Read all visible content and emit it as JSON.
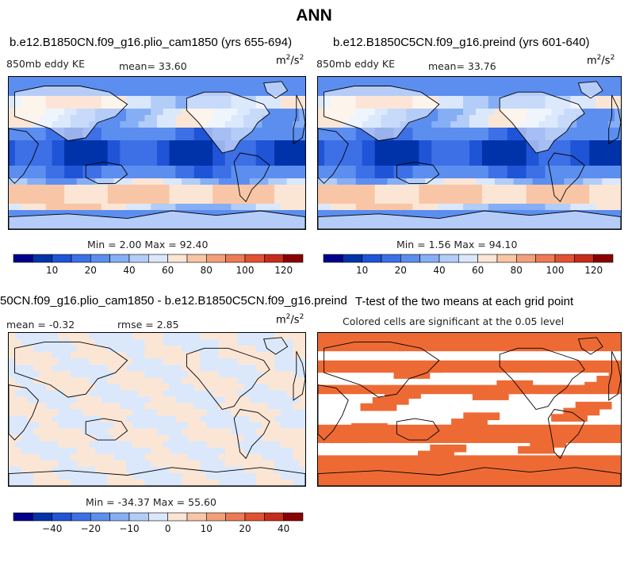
{
  "title": "ANN",
  "panels": [
    {
      "id": "p1",
      "title": "b.e12.B1850CN.f09_g16.plio_cam1850 (yrs 655-694)",
      "left_label": "850mb eddy KE",
      "stat1": "mean=  33.60",
      "stat2": "",
      "units": "m",
      "units_sup1": "2",
      "units_mid": "/s",
      "units_sup2": "2",
      "minmax": "Min =   2.00 Max =  92.40",
      "field": "kinetic"
    },
    {
      "id": "p2",
      "title": "b.e12.B1850C5CN.f09_g16.preind (yrs 601-640)",
      "left_label": "850mb eddy KE",
      "stat1": "mean=  33.76",
      "stat2": "",
      "units": "m",
      "units_sup1": "2",
      "units_mid": "/s",
      "units_sup2": "2",
      "minmax": "Min =   1.56 Max =  94.10",
      "field": "kinetic"
    },
    {
      "id": "p3",
      "title": "50CN.f09_g16.plio_cam1850 - b.e12.B1850C5CN.f09_g16.preind",
      "left_label": "mean =  -0.32",
      "stat1": "rmse =   2.85",
      "stat2": "",
      "units": "m",
      "units_sup1": "2",
      "units_mid": "/s",
      "units_sup2": "2",
      "minmax": "Min = -34.37 Max =  55.60",
      "field": "difference"
    },
    {
      "id": "p4",
      "title": "T-test of the two means at each grid point",
      "subtitle": "Colored cells are significant at the 0.05 level",
      "field": "significance"
    }
  ],
  "chart_data": [
    {
      "type": "heatmap",
      "title": "b.e12.B1850CN.f09_g16.plio_cam1850 (yrs 655-694)",
      "variable": "850mb eddy KE",
      "units": "m^2/s^2",
      "mean": 33.6,
      "min": 2.0,
      "max": 92.4,
      "colorbar_ticks": [
        "10",
        "20",
        "40",
        "60",
        "80",
        "100",
        "120"
      ],
      "levels": [
        5,
        10,
        15,
        20,
        30,
        40,
        50,
        60,
        70,
        80,
        90,
        100,
        110,
        120,
        130
      ]
    },
    {
      "type": "heatmap",
      "title": "b.e12.B1850C5CN.f09_g16.preind (yrs 601-640)",
      "variable": "850mb eddy KE",
      "units": "m^2/s^2",
      "mean": 33.76,
      "min": 1.56,
      "max": 94.1,
      "colorbar_ticks": [
        "10",
        "20",
        "40",
        "60",
        "80",
        "100",
        "120"
      ],
      "levels": [
        5,
        10,
        15,
        20,
        30,
        40,
        50,
        60,
        70,
        80,
        90,
        100,
        110,
        120,
        130
      ]
    },
    {
      "type": "heatmap",
      "title": "50CN.f09_g16.plio_cam1850 - b.e12.B1850C5CN.f09_g16.preind",
      "units": "m^2/s^2",
      "mean": -0.32,
      "rmse": 2.85,
      "min": -34.37,
      "max": 55.6,
      "colorbar_ticks": [
        "−40",
        "−20",
        "−10",
        "0",
        "10",
        "20",
        "40"
      ],
      "levels": [
        -50,
        -40,
        -30,
        -20,
        -15,
        -10,
        -5,
        0,
        5,
        10,
        15,
        20,
        30,
        40,
        50
      ]
    },
    {
      "type": "heatmap",
      "title": "T-test of the two means at each grid point",
      "subtitle": "Colored cells are significant at the 0.05 level",
      "significance_level": 0.05
    }
  ],
  "colors": {
    "cbar": [
      "#00008b",
      "#0033aa",
      "#1f54d6",
      "#3d6fe6",
      "#5c8ef0",
      "#86aef4",
      "#b2cdf8",
      "#dbe8fb",
      "#fbe6d6",
      "#f8c6a6",
      "#f2a07a",
      "#ec7a55",
      "#e25231",
      "#c72c1a",
      "#8b0000"
    ],
    "significance": "#ee6a35",
    "land_outline": "#000000"
  }
}
